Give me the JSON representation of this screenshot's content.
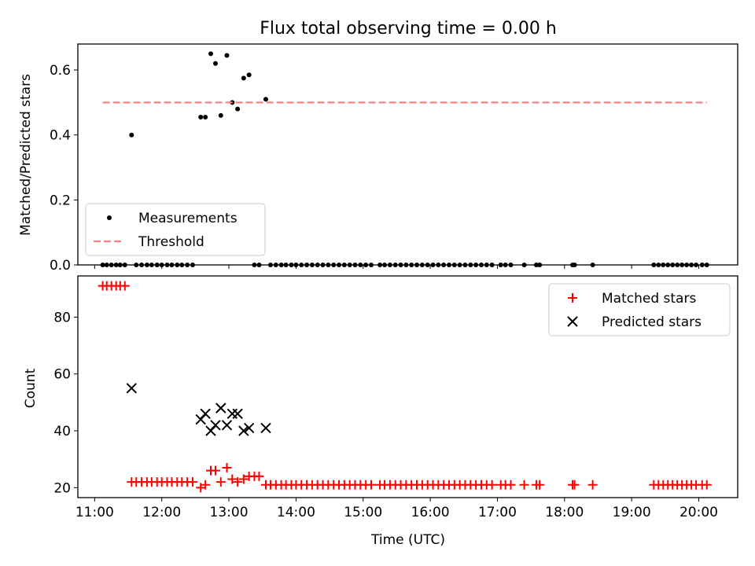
{
  "chart_data": [
    {
      "type": "scatter",
      "title": "Flux total observing time = 0.00 h",
      "xlabel": "",
      "ylabel": "Matched/Predicted stars",
      "xlim": [
        10.75,
        20.58
      ],
      "ylim": [
        0,
        0.68
      ],
      "yticks": [
        0.0,
        0.2,
        0.4,
        0.6
      ],
      "ytick_labels": [
        "0.0",
        "0.2",
        "0.4",
        "0.6"
      ],
      "xticks": [
        11,
        12,
        13,
        14,
        15,
        16,
        17,
        18,
        19,
        20
      ],
      "legend_position": "lower-left",
      "series": [
        {
          "name": "Measurements",
          "marker": "dot",
          "color": "#000000",
          "points": [
            [
              11.55,
              0.4
            ],
            [
              12.58,
              0.455
            ],
            [
              12.65,
              0.455
            ],
            [
              12.73,
              0.65
            ],
            [
              12.8,
              0.62
            ],
            [
              12.88,
              0.46
            ],
            [
              12.97,
              0.645
            ],
            [
              13.05,
              0.5
            ],
            [
              13.13,
              0.48
            ],
            [
              13.22,
              0.575
            ],
            [
              13.3,
              0.585
            ],
            [
              13.55,
              0.51
            ],
            [
              11.12,
              0.0
            ],
            [
              11.18,
              0.0
            ],
            [
              11.25,
              0.0
            ],
            [
              11.32,
              0.0
            ],
            [
              11.38,
              0.0
            ],
            [
              11.45,
              0.0
            ],
            [
              11.62,
              0.0
            ],
            [
              11.7,
              0.0
            ],
            [
              11.78,
              0.0
            ],
            [
              11.85,
              0.0
            ],
            [
              11.93,
              0.0
            ],
            [
              12.0,
              0.0
            ],
            [
              12.08,
              0.0
            ],
            [
              12.15,
              0.0
            ],
            [
              12.23,
              0.0
            ],
            [
              12.3,
              0.0
            ],
            [
              12.38,
              0.0
            ],
            [
              12.46,
              0.0
            ],
            [
              13.38,
              0.0
            ],
            [
              13.45,
              0.0
            ],
            [
              13.62,
              0.0
            ],
            [
              13.7,
              0.0
            ],
            [
              13.78,
              0.0
            ],
            [
              13.85,
              0.0
            ],
            [
              13.93,
              0.0
            ],
            [
              14.0,
              0.0
            ],
            [
              14.08,
              0.0
            ],
            [
              14.16,
              0.0
            ],
            [
              14.24,
              0.0
            ],
            [
              14.32,
              0.0
            ],
            [
              14.4,
              0.0
            ],
            [
              14.48,
              0.0
            ],
            [
              14.56,
              0.0
            ],
            [
              14.64,
              0.0
            ],
            [
              14.72,
              0.0
            ],
            [
              14.8,
              0.0
            ],
            [
              14.88,
              0.0
            ],
            [
              14.96,
              0.0
            ],
            [
              15.04,
              0.0
            ],
            [
              15.12,
              0.0
            ],
            [
              15.25,
              0.0
            ],
            [
              15.32,
              0.0
            ],
            [
              15.4,
              0.0
            ],
            [
              15.48,
              0.0
            ],
            [
              15.56,
              0.0
            ],
            [
              15.64,
              0.0
            ],
            [
              15.72,
              0.0
            ],
            [
              15.8,
              0.0
            ],
            [
              15.88,
              0.0
            ],
            [
              15.96,
              0.0
            ],
            [
              16.04,
              0.0
            ],
            [
              16.12,
              0.0
            ],
            [
              16.2,
              0.0
            ],
            [
              16.28,
              0.0
            ],
            [
              16.36,
              0.0
            ],
            [
              16.44,
              0.0
            ],
            [
              16.52,
              0.0
            ],
            [
              16.6,
              0.0
            ],
            [
              16.68,
              0.0
            ],
            [
              16.76,
              0.0
            ],
            [
              16.84,
              0.0
            ],
            [
              16.92,
              0.0
            ],
            [
              17.05,
              0.0
            ],
            [
              17.12,
              0.0
            ],
            [
              17.2,
              0.0
            ],
            [
              17.4,
              0.0
            ],
            [
              17.58,
              0.0
            ],
            [
              17.63,
              0.0
            ],
            [
              18.12,
              0.0
            ],
            [
              18.15,
              0.0
            ],
            [
              18.42,
              0.0
            ],
            [
              19.33,
              0.0
            ],
            [
              19.4,
              0.0
            ],
            [
              19.47,
              0.0
            ],
            [
              19.54,
              0.0
            ],
            [
              19.61,
              0.0
            ],
            [
              19.68,
              0.0
            ],
            [
              19.75,
              0.0
            ],
            [
              19.82,
              0.0
            ],
            [
              19.89,
              0.0
            ],
            [
              19.96,
              0.0
            ],
            [
              20.05,
              0.0
            ],
            [
              20.12,
              0.0
            ]
          ]
        },
        {
          "name": "Threshold",
          "type": "line",
          "style": "dashed",
          "color": "#ff7f7f",
          "points": [
            [
              11.12,
              0.5
            ],
            [
              20.12,
              0.5
            ]
          ]
        }
      ]
    },
    {
      "type": "scatter",
      "title": "",
      "xlabel": "Time (UTC)",
      "ylabel": "Count",
      "xlim": [
        10.75,
        20.58
      ],
      "ylim": [
        16.5,
        94.5
      ],
      "yticks": [
        20,
        40,
        60,
        80
      ],
      "ytick_labels": [
        "20",
        "40",
        "60",
        "80"
      ],
      "xticks": [
        11,
        12,
        13,
        14,
        15,
        16,
        17,
        18,
        19,
        20
      ],
      "xtick_labels": [
        "11:00",
        "12:00",
        "13:00",
        "14:00",
        "15:00",
        "16:00",
        "17:00",
        "18:00",
        "19:00",
        "20:00"
      ],
      "legend_position": "top-right",
      "series": [
        {
          "name": "Matched stars",
          "marker": "plus",
          "color": "#ff0000",
          "points": [
            [
              11.12,
              91
            ],
            [
              11.18,
              91
            ],
            [
              11.25,
              91
            ],
            [
              11.32,
              91
            ],
            [
              11.38,
              91
            ],
            [
              11.45,
              91
            ],
            [
              11.55,
              22
            ],
            [
              11.62,
              22
            ],
            [
              11.7,
              22
            ],
            [
              11.78,
              22
            ],
            [
              11.85,
              22
            ],
            [
              11.93,
              22
            ],
            [
              12.0,
              22
            ],
            [
              12.08,
              22
            ],
            [
              12.15,
              22
            ],
            [
              12.23,
              22
            ],
            [
              12.3,
              22
            ],
            [
              12.38,
              22
            ],
            [
              12.46,
              22
            ],
            [
              12.58,
              20
            ],
            [
              12.65,
              21
            ],
            [
              12.73,
              26
            ],
            [
              12.8,
              26
            ],
            [
              12.88,
              22
            ],
            [
              12.97,
              27
            ],
            [
              13.05,
              23
            ],
            [
              13.13,
              22
            ],
            [
              13.22,
              23
            ],
            [
              13.3,
              24
            ],
            [
              13.38,
              24
            ],
            [
              13.45,
              24
            ],
            [
              13.55,
              21
            ],
            [
              13.62,
              21
            ],
            [
              13.7,
              21
            ],
            [
              13.78,
              21
            ],
            [
              13.85,
              21
            ],
            [
              13.93,
              21
            ],
            [
              14.0,
              21
            ],
            [
              14.08,
              21
            ],
            [
              14.16,
              21
            ],
            [
              14.24,
              21
            ],
            [
              14.32,
              21
            ],
            [
              14.4,
              21
            ],
            [
              14.48,
              21
            ],
            [
              14.56,
              21
            ],
            [
              14.64,
              21
            ],
            [
              14.72,
              21
            ],
            [
              14.8,
              21
            ],
            [
              14.88,
              21
            ],
            [
              14.96,
              21
            ],
            [
              15.04,
              21
            ],
            [
              15.12,
              21
            ],
            [
              15.25,
              21
            ],
            [
              15.32,
              21
            ],
            [
              15.4,
              21
            ],
            [
              15.48,
              21
            ],
            [
              15.56,
              21
            ],
            [
              15.64,
              21
            ],
            [
              15.72,
              21
            ],
            [
              15.8,
              21
            ],
            [
              15.88,
              21
            ],
            [
              15.96,
              21
            ],
            [
              16.04,
              21
            ],
            [
              16.12,
              21
            ],
            [
              16.2,
              21
            ],
            [
              16.28,
              21
            ],
            [
              16.36,
              21
            ],
            [
              16.44,
              21
            ],
            [
              16.52,
              21
            ],
            [
              16.6,
              21
            ],
            [
              16.68,
              21
            ],
            [
              16.76,
              21
            ],
            [
              16.84,
              21
            ],
            [
              16.92,
              21
            ],
            [
              17.05,
              21
            ],
            [
              17.12,
              21
            ],
            [
              17.2,
              21
            ],
            [
              17.4,
              21
            ],
            [
              17.58,
              21
            ],
            [
              17.63,
              21
            ],
            [
              18.12,
              21
            ],
            [
              18.15,
              21
            ],
            [
              18.42,
              21
            ],
            [
              19.33,
              21
            ],
            [
              19.4,
              21
            ],
            [
              19.47,
              21
            ],
            [
              19.54,
              21
            ],
            [
              19.61,
              21
            ],
            [
              19.68,
              21
            ],
            [
              19.75,
              21
            ],
            [
              19.82,
              21
            ],
            [
              19.89,
              21
            ],
            [
              19.96,
              21
            ],
            [
              20.05,
              21
            ],
            [
              20.12,
              21
            ]
          ]
        },
        {
          "name": "Predicted stars",
          "marker": "x",
          "color": "#000000",
          "points": [
            [
              11.55,
              55
            ],
            [
              12.58,
              44
            ],
            [
              12.65,
              46
            ],
            [
              12.73,
              40
            ],
            [
              12.8,
              42
            ],
            [
              12.88,
              48
            ],
            [
              12.97,
              42
            ],
            [
              13.05,
              46
            ],
            [
              13.13,
              46
            ],
            [
              13.22,
              40
            ],
            [
              13.3,
              41
            ],
            [
              13.55,
              41
            ]
          ]
        }
      ]
    }
  ]
}
